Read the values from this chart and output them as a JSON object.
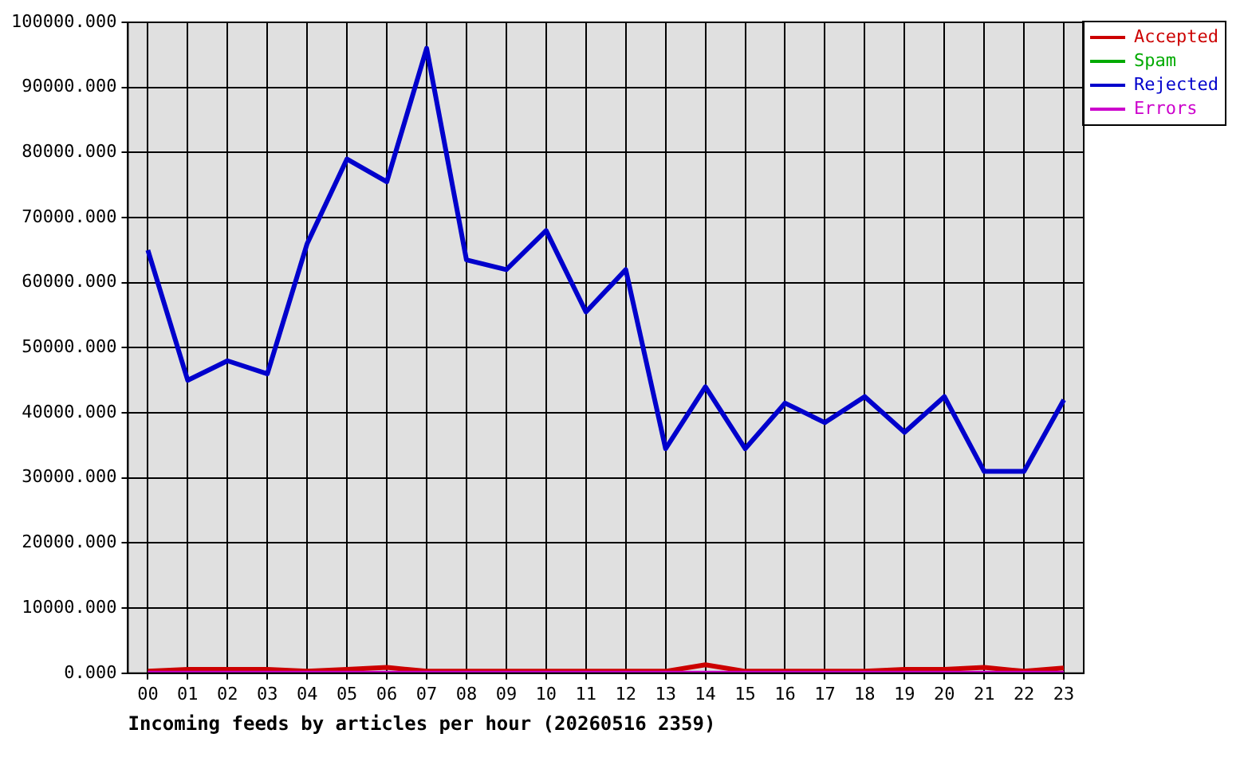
{
  "chart_data": {
    "type": "line",
    "xlabel": "Incoming feeds by articles per hour (20260516 2359)",
    "categories": [
      "00",
      "01",
      "02",
      "03",
      "04",
      "05",
      "06",
      "07",
      "08",
      "09",
      "10",
      "11",
      "12",
      "13",
      "14",
      "15",
      "16",
      "17",
      "18",
      "19",
      "20",
      "21",
      "22",
      "23"
    ],
    "series": [
      {
        "name": "Accepted",
        "color": "#cc0000",
        "values": [
          300,
          600,
          600,
          600,
          300,
          600,
          900,
          300,
          300,
          300,
          300,
          300,
          300,
          300,
          1300,
          300,
          300,
          300,
          300,
          600,
          600,
          900,
          300,
          800
        ]
      },
      {
        "name": "Spam",
        "color": "#00aa00",
        "values": [
          null,
          null,
          null,
          null,
          null,
          null,
          null,
          null,
          null,
          null,
          null,
          null,
          null,
          null,
          null,
          null,
          null,
          null,
          null,
          null,
          null,
          null,
          null,
          null
        ]
      },
      {
        "name": "Rejected",
        "color": "#0000cc",
        "values": [
          65000,
          45000,
          48000,
          46000,
          66000,
          79000,
          75500,
          96000,
          63500,
          62000,
          68000,
          55500,
          62000,
          34500,
          44000,
          34500,
          41500,
          38500,
          42500,
          37000,
          42500,
          31000,
          31000,
          42000
        ]
      },
      {
        "name": "Errors",
        "color": "#cc00cc",
        "values": [
          0,
          0,
          0,
          0,
          0,
          0,
          0,
          0,
          0,
          0,
          0,
          0,
          0,
          0,
          0,
          0,
          0,
          0,
          0,
          0,
          0,
          0,
          0,
          0
        ]
      }
    ],
    "ylim": [
      0,
      100000
    ],
    "yticks": [
      {
        "value": 0,
        "label": "0.000"
      },
      {
        "value": 10000,
        "label": "10000.000"
      },
      {
        "value": 20000,
        "label": "20000.000"
      },
      {
        "value": 30000,
        "label": "30000.000"
      },
      {
        "value": 40000,
        "label": "40000.000"
      },
      {
        "value": 50000,
        "label": "50000.000"
      },
      {
        "value": 60000,
        "label": "60000.000"
      },
      {
        "value": 70000,
        "label": "70000.000"
      },
      {
        "value": 80000,
        "label": "80000.000"
      },
      {
        "value": 90000,
        "label": "90000.000"
      },
      {
        "value": 100000,
        "label": "100000.000"
      }
    ],
    "grid": true,
    "legend": "top right",
    "marker": "none",
    "line_style": "solid"
  }
}
